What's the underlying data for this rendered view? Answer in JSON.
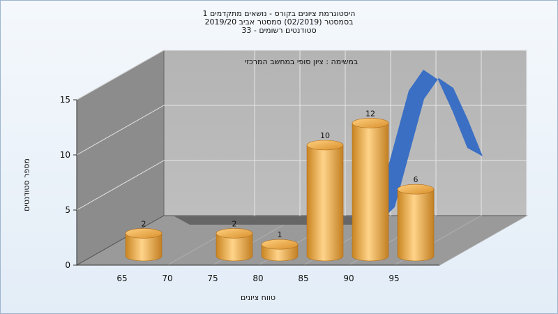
{
  "title_lines": [
    "היסטוגרמת ציונים בקורס - נושאים מתקדמים 1",
    "בסמסטר  (02/2019)  סמסטר אביב 2019/20",
    "סטודנטים רשומים - 33"
  ],
  "task_label": "במשימה : ציון סופי במחשב המרכזי",
  "chart_data": {
    "type": "bar",
    "title": "היסטוגרמת ציונים בקורס - נושאים מתקדמים 1",
    "xlabel": "טווח ציונים",
    "ylabel": "מספר סטודנטים",
    "x_ticks": [
      "65",
      "70",
      "75",
      "80",
      "85",
      "90",
      "95"
    ],
    "y_ticks": [
      "0",
      "5",
      "10",
      "15"
    ],
    "ylim": [
      0,
      15
    ],
    "bars": [
      {
        "bin": 65,
        "value": 2
      },
      {
        "bin": 75,
        "value": 2
      },
      {
        "bin": 80,
        "value": 1
      },
      {
        "bin": 85,
        "value": 10
      },
      {
        "bin": 90,
        "value": 12
      },
      {
        "bin": 95,
        "value": 6
      }
    ],
    "curve": {
      "type": "normal-distribution-ribbon",
      "color": "#3a6fc4",
      "x": [
        50,
        55,
        60,
        65,
        70,
        75,
        80,
        82.5,
        85,
        87.5,
        90,
        92.5,
        95,
        97.5,
        100
      ],
      "y": [
        0,
        0,
        0,
        0,
        0,
        0,
        0,
        0.3,
        1.6,
        6.5,
        11.4,
        13.3,
        12.4,
        9.5,
        6.2
      ]
    },
    "bar_color": "#e5a744",
    "grid": true
  }
}
